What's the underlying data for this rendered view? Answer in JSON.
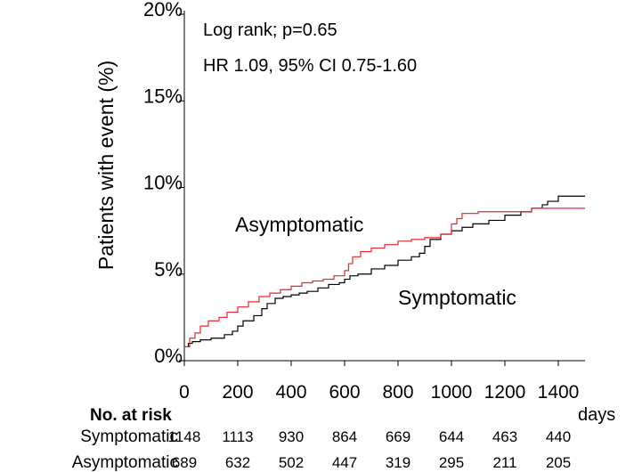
{
  "chart_data": {
    "type": "line",
    "title": "",
    "xlabel": "days",
    "ylabel": "Patients with event (%)",
    "xlim": [
      0,
      1500
    ],
    "ylim": [
      0,
      20
    ],
    "x_ticks": [
      0,
      200,
      400,
      600,
      800,
      1000,
      1200,
      1400
    ],
    "x_tick_labels": [
      "0",
      "200",
      "400",
      "600",
      "800",
      "1000",
      "1200",
      "1400"
    ],
    "y_ticks": [
      0,
      5,
      10,
      15,
      20
    ],
    "y_tick_labels": [
      "0%",
      "5%",
      "10%",
      "15%",
      "20%"
    ],
    "grid": false,
    "annotations": [
      {
        "id": "log-rank",
        "text": "Log rank; p=0.65"
      },
      {
        "id": "hazard-ratio",
        "text": "HR 1.09, 95% CI 0.75-1.60"
      }
    ],
    "series": [
      {
        "name": "Symptomatic",
        "color": "#000000",
        "x": [
          0,
          15,
          30,
          60,
          100,
          150,
          180,
          200,
          220,
          260,
          290,
          310,
          340,
          370,
          400,
          430,
          460,
          500,
          540,
          580,
          600,
          620,
          650,
          700,
          750,
          800,
          850,
          880,
          900,
          920,
          960,
          1000,
          1040,
          1080,
          1140,
          1200,
          1260,
          1300,
          1340,
          1360,
          1400,
          1500
        ],
        "y": [
          0.8,
          1.0,
          1.1,
          1.2,
          1.3,
          1.5,
          1.7,
          2.0,
          2.3,
          2.6,
          3.0,
          3.3,
          3.6,
          3.7,
          3.8,
          3.9,
          4.0,
          4.2,
          4.4,
          4.5,
          4.7,
          4.9,
          5.0,
          5.3,
          5.5,
          5.8,
          6.0,
          6.2,
          6.6,
          7.0,
          7.3,
          7.5,
          7.7,
          7.9,
          8.1,
          8.4,
          8.6,
          8.8,
          9.0,
          9.2,
          9.5,
          9.5
        ]
      },
      {
        "name": "Asymptomatic",
        "color": "#e8262b",
        "x": [
          0,
          20,
          40,
          60,
          90,
          130,
          160,
          200,
          240,
          280,
          320,
          360,
          400,
          440,
          480,
          520,
          560,
          600,
          615,
          630,
          660,
          700,
          750,
          800,
          850,
          900,
          960,
          1000,
          1020,
          1040,
          1100,
          1200,
          1300,
          1500
        ],
        "y": [
          0.8,
          1.3,
          1.6,
          2.0,
          2.3,
          2.5,
          2.8,
          3.1,
          3.4,
          3.7,
          3.9,
          4.1,
          4.3,
          4.5,
          4.6,
          4.7,
          4.9,
          5.2,
          5.6,
          6.0,
          6.3,
          6.5,
          6.7,
          6.9,
          7.0,
          7.1,
          7.3,
          7.9,
          8.2,
          8.5,
          8.6,
          8.6,
          8.8,
          8.8
        ]
      }
    ],
    "line_labels": [
      {
        "series": "Asymptomatic",
        "text": "Asymptomatic"
      },
      {
        "series": "Symptomatic",
        "text": "Symptomatic"
      }
    ],
    "risk_table": {
      "title": "No. at risk",
      "columns": [
        0,
        200,
        400,
        600,
        800,
        1000,
        1200,
        1400
      ],
      "rows": [
        {
          "label": "Symptomatic",
          "values": [
            "1148",
            "1113",
            "930",
            "864",
            "669",
            "644",
            "463",
            "440"
          ]
        },
        {
          "label": "Asymptomatic",
          "values": [
            "689",
            "632",
            "502",
            "447",
            "319",
            "295",
            "211",
            "205"
          ]
        }
      ]
    }
  }
}
